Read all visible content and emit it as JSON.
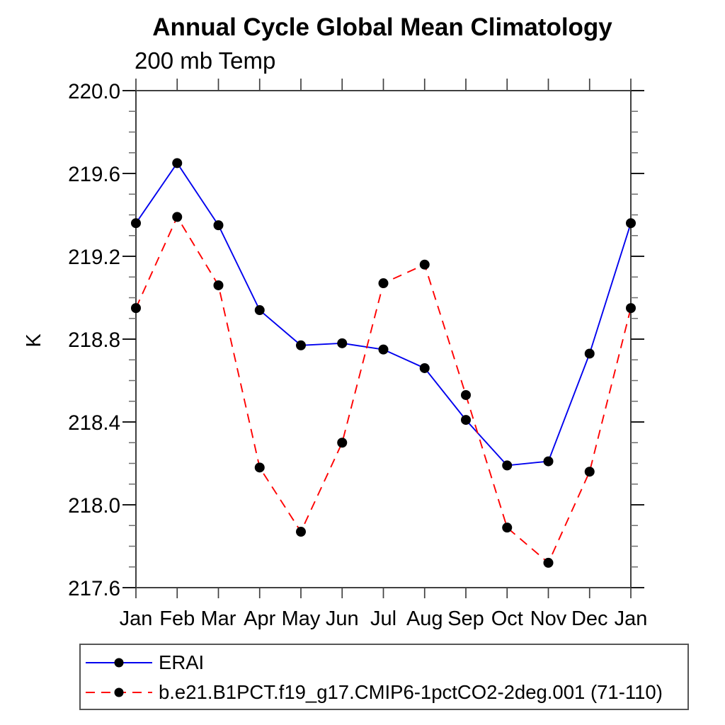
{
  "title": "Annual Cycle Global Mean Climatology",
  "subtitle": "200 mb Temp",
  "chart_data": {
    "type": "line",
    "title": "Annual Cycle Global Mean Climatology",
    "subtitle": "200 mb Temp",
    "xlabel": "",
    "ylabel": "K",
    "x_categories": [
      "Jan",
      "Feb",
      "Mar",
      "Apr",
      "May",
      "Jun",
      "Jul",
      "Aug",
      "Sep",
      "Oct",
      "Nov",
      "Dec",
      "Jan"
    ],
    "ylim": [
      217.6,
      220.0
    ],
    "yticks": [
      220.0,
      219.6,
      219.2,
      218.8,
      218.4,
      218.0,
      217.6
    ],
    "minor_tick_step": 0.1,
    "grid": false,
    "axis_color": "#404040",
    "major_tick_color": "#1a1a1a",
    "minor_tick_color": "#6e6e6e",
    "marker_color": "#000000",
    "legend_position": "bottom-left-outside",
    "series": [
      {
        "name": "ERAI",
        "color": "#0000ee",
        "line_style": "solid",
        "marker": "circle",
        "values": [
          219.36,
          219.65,
          219.35,
          218.94,
          218.77,
          218.78,
          218.75,
          218.66,
          218.41,
          218.19,
          218.21,
          218.73,
          219.36
        ]
      },
      {
        "name": "b.e21.B1PCT.f19_g17.CMIP6-1pctCO2-2deg.001 (71-110)",
        "color": "#ff0000",
        "line_style": "dashed",
        "marker": "circle",
        "values": [
          218.95,
          219.39,
          219.06,
          218.18,
          217.87,
          218.3,
          219.07,
          219.16,
          218.53,
          217.89,
          217.72,
          218.16,
          218.95
        ]
      }
    ]
  }
}
